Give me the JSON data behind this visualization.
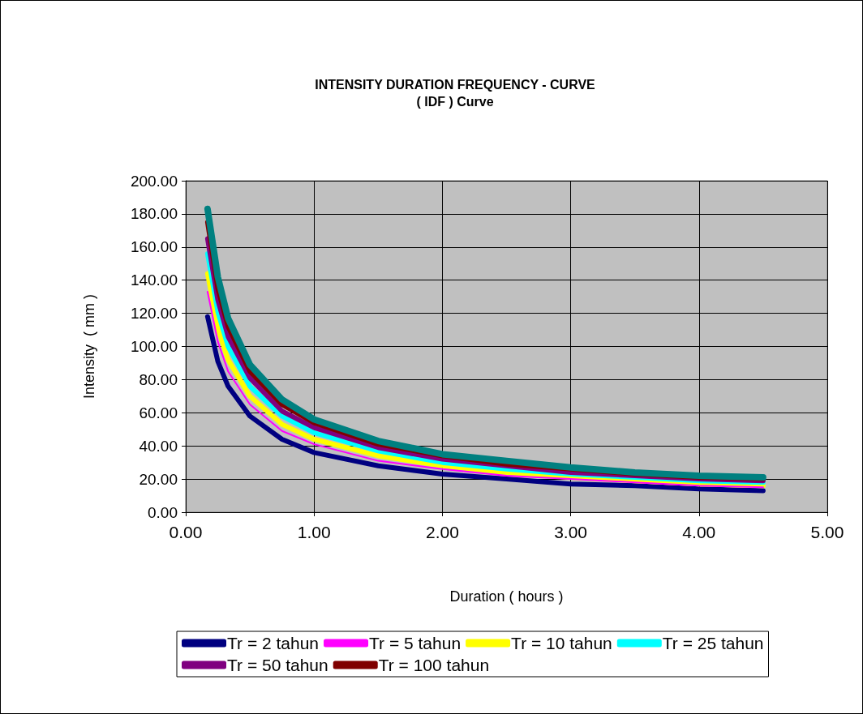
{
  "chart_data": {
    "type": "line",
    "title": "INTENSITY DURATION FREQUENCY - CURVE\n( IDF ) Curve",
    "xlabel": "Duration ( hours )",
    "ylabel": "Intensity  ( mm )",
    "x": [
      0.17,
      0.25,
      0.33,
      0.5,
      0.75,
      1,
      1.5,
      2,
      2.5,
      3,
      3.5,
      4,
      4.5
    ],
    "series": [
      {
        "name": "Tr = 2 tahun",
        "color": "#000080",
        "values": [
          118,
          91,
          76,
          58,
          44,
          36,
          28,
          23,
          20,
          17,
          16,
          14,
          13
        ]
      },
      {
        "name": "Tr = 5 tahun",
        "color": "#ff00ff",
        "values": [
          133,
          103,
          85,
          65,
          49,
          41,
          31,
          26,
          22,
          20,
          18,
          16,
          15
        ]
      },
      {
        "name": "Tr = 10 tahun",
        "color": "#ffff00",
        "values": [
          144,
          111,
          92,
          70,
          53,
          44,
          34,
          28,
          24,
          21,
          19,
          17,
          16
        ]
      },
      {
        "name": "Tr = 25 tahun",
        "color": "#00ffff",
        "values": [
          156,
          121,
          100,
          76,
          58,
          48,
          37,
          30,
          26,
          23,
          21,
          19,
          18
        ]
      },
      {
        "name": "Tr = 50 tahun",
        "color": "#800080",
        "values": [
          165,
          128,
          106,
          81,
          61,
          51,
          39,
          32,
          28,
          24,
          22,
          20,
          19
        ]
      },
      {
        "name": "Tr = 100 tahun",
        "color": "#800000",
        "values": [
          175,
          135,
          112,
          85,
          65,
          54,
          41,
          34,
          29,
          26,
          23,
          21,
          20
        ]
      },
      {
        "color": "#008080",
        "values": [
          183,
          142,
          117,
          89,
          68,
          56,
          43,
          35,
          31,
          27,
          24,
          22,
          21
        ]
      }
    ],
    "xlim": [
      0,
      5
    ],
    "xticks": [
      {
        "value": 0,
        "label": "0.00"
      },
      {
        "value": 1,
        "label": "1.00"
      },
      {
        "value": 2,
        "label": "2.00"
      },
      {
        "value": 3,
        "label": "3.00"
      },
      {
        "value": 4,
        "label": "4.00"
      },
      {
        "value": 5,
        "label": "5.00"
      }
    ],
    "ylim": [
      0,
      200
    ],
    "yticks": [
      {
        "value": 0,
        "label": "0.00"
      },
      {
        "value": 20,
        "label": "20.00"
      },
      {
        "value": 40,
        "label": "40.00"
      },
      {
        "value": 60,
        "label": "60.00"
      },
      {
        "value": 80,
        "label": "80.00"
      },
      {
        "value": 100,
        "label": "100.00"
      },
      {
        "value": 120,
        "label": "120.00"
      },
      {
        "value": 140,
        "label": "140.00"
      },
      {
        "value": 160,
        "label": "160.00"
      },
      {
        "value": 180,
        "label": "180.00"
      },
      {
        "value": 200,
        "label": "200.00"
      }
    ],
    "grid": true,
    "legend": "bottom",
    "marker": "none",
    "line_style": "solid"
  }
}
